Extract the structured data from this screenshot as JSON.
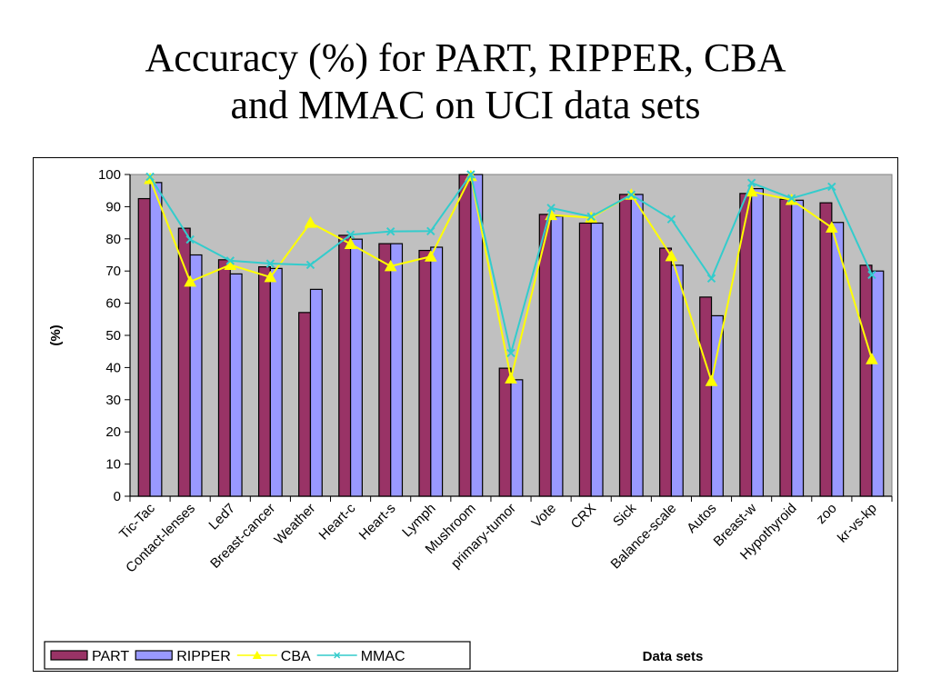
{
  "page": {
    "title_line1": "Accuracy (%) for PART, RIPPER, CBA",
    "title_line2": "and MMAC on UCI data sets"
  },
  "chart_data": {
    "type": "bar",
    "title": "Accuracy (%) for PART, RIPPER, CBA and MMAC on UCI data sets",
    "xlabel": "Data sets",
    "ylabel": "(%)",
    "ylim": [
      0,
      100
    ],
    "yticks": [
      0,
      10,
      20,
      30,
      40,
      50,
      60,
      70,
      80,
      90,
      100
    ],
    "grid": false,
    "legend_position": "bottom-left",
    "categories": [
      "Tic-Tac",
      "Contact-lenses",
      "Led7",
      "Breast-cancer",
      "Weather",
      "Heart-c",
      "Heart-s",
      "Lymph",
      "Mushroom",
      "primary-tumor",
      "Vote",
      "CRX",
      "Sick",
      "Balance-scale",
      "Autos",
      "Breast-w",
      "Hypothyroid",
      "zoo",
      "kr-vs-kp"
    ],
    "series": [
      {
        "name": "PART",
        "kind": "bar",
        "color": "#993366",
        "values": [
          92.5,
          83.3,
          73.5,
          71.3,
          57.1,
          81.1,
          78.5,
          76.4,
          100,
          39.8,
          87.6,
          84.9,
          93.8,
          77.1,
          61.9,
          94.1,
          92.3,
          91.2,
          71.8
        ]
      },
      {
        "name": "RIPPER",
        "kind": "bar",
        "color": "#9999ff",
        "values": [
          97.5,
          75.0,
          69.1,
          70.8,
          64.3,
          79.9,
          78.5,
          77.4,
          100,
          36.2,
          87.0,
          84.9,
          93.8,
          71.8,
          56.1,
          95.6,
          92.0,
          85.1,
          70.0
        ]
      },
      {
        "name": "CBA",
        "kind": "line",
        "marker": "triangle",
        "color": "#ffff00",
        "values": [
          98.6,
          66.7,
          71.9,
          68.1,
          85.0,
          78.4,
          71.5,
          74.5,
          99.5,
          36.6,
          87.4,
          86.6,
          93.7,
          74.6,
          35.8,
          94.7,
          92.1,
          83.5,
          42.6
        ]
      },
      {
        "name": "MMAC",
        "kind": "line",
        "marker": "x",
        "color": "#33cccc",
        "values": [
          99.3,
          79.8,
          73.2,
          72.3,
          71.9,
          81.3,
          82.3,
          82.4,
          100,
          44.5,
          89.6,
          86.9,
          93.7,
          86.1,
          67.7,
          97.4,
          92.6,
          96.2,
          68.8
        ]
      }
    ],
    "plot_background": "#c0c0c0"
  }
}
